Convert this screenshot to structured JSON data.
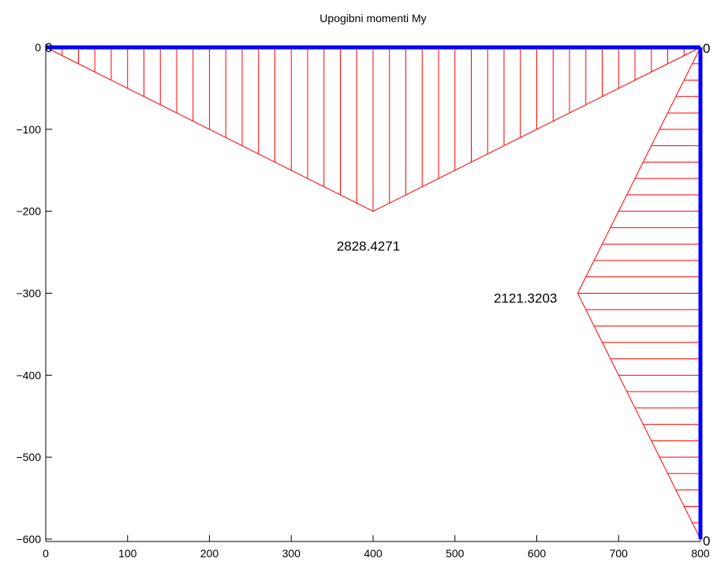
{
  "chart_data": {
    "type": "line",
    "title": "Upogibni momenti My",
    "xlabel": "",
    "ylabel": "",
    "xlim": [
      0,
      800
    ],
    "ylim": [
      -610,
      0
    ],
    "xticks": [
      0,
      100,
      200,
      300,
      400,
      500,
      600,
      700,
      800
    ],
    "yticks": [
      0,
      -100,
      -200,
      -300,
      -400,
      -500,
      -600
    ],
    "grid": false,
    "colors": {
      "structure": "#0000ff",
      "moment": "#ff0000",
      "axes": "#000000"
    },
    "structure": [
      {
        "points": [
          [
            0,
            0
          ],
          [
            800,
            0
          ]
        ]
      },
      {
        "points": [
          [
            800,
            0
          ],
          [
            800,
            -600
          ]
        ]
      }
    ],
    "moment_diagrams": [
      {
        "member": "beam",
        "outline": [
          [
            0,
            0
          ],
          [
            400,
            -200
          ],
          [
            800,
            0
          ]
        ],
        "hatch": "vertical",
        "hatch_count": 40,
        "peak_label": "2828.4271",
        "end_labels": [
          "0",
          "0"
        ]
      },
      {
        "member": "column",
        "outline": [
          [
            800,
            0
          ],
          [
            650,
            -300
          ],
          [
            800,
            -600
          ]
        ],
        "hatch": "horizontal",
        "hatch_count": 30,
        "peak_label": "2121.3203",
        "end_labels": [
          "0",
          "0"
        ]
      }
    ]
  }
}
